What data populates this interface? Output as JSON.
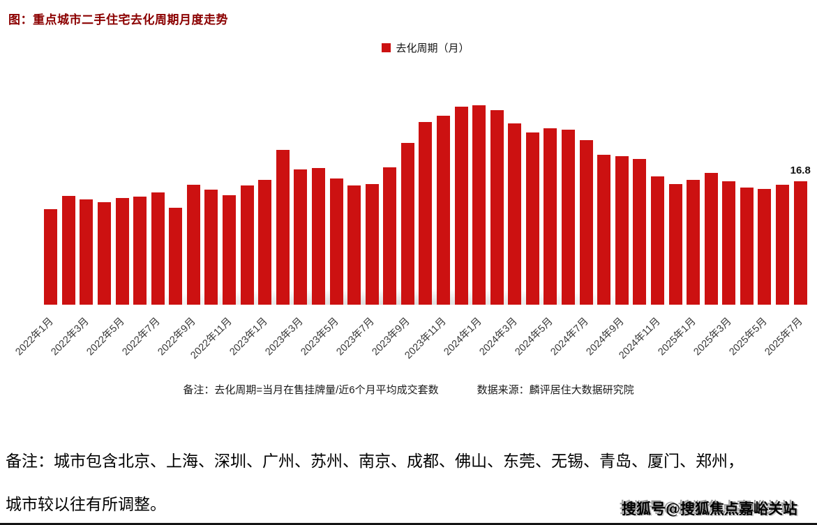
{
  "title": "图：重点城市二手住宅去化周期月度走势",
  "legend": {
    "label": "去化周期（月）",
    "color": "#CC1111"
  },
  "chart_data": {
    "type": "bar",
    "title": "重点城市二手住宅去化周期月度走势",
    "xlabel": "",
    "ylabel": "去化周期（月）",
    "ylim": [
      0,
      30
    ],
    "grid": false,
    "legend_position": "top-center",
    "bar_color": "#CC1111",
    "categories": [
      "2022年1月",
      "2022年2月",
      "2022年3月",
      "2022年4月",
      "2022年5月",
      "2022年6月",
      "2022年7月",
      "2022年8月",
      "2022年9月",
      "2022年10月",
      "2022年11月",
      "2022年12月",
      "2023年1月",
      "2023年2月",
      "2023年3月",
      "2023年4月",
      "2023年5月",
      "2023年6月",
      "2023年7月",
      "2023年8月",
      "2023年9月",
      "2023年10月",
      "2023年11月",
      "2023年12月",
      "2024年1月",
      "2024年2月",
      "2024年3月",
      "2024年4月",
      "2024年5月",
      "2024年6月",
      "2024年7月",
      "2024年8月",
      "2024年9月",
      "2024年10月",
      "2024年11月",
      "2024年12月",
      "2025年1月",
      "2025年2月",
      "2025年3月",
      "2025年4月",
      "2025年5月",
      "2025年6月",
      "2025年7月"
    ],
    "values": [
      13.0,
      14.8,
      14.3,
      13.9,
      14.5,
      14.7,
      15.3,
      13.2,
      16.3,
      15.6,
      14.9,
      16.2,
      17.0,
      21.0,
      18.4,
      18.6,
      17.2,
      16.2,
      16.4,
      18.7,
      22.0,
      24.8,
      25.7,
      26.9,
      27.1,
      26.4,
      24.6,
      23.4,
      24.0,
      23.8,
      22.4,
      20.4,
      20.2,
      19.8,
      17.4,
      16.4,
      17.0,
      17.9,
      16.8,
      15.9,
      15.7,
      16.3,
      16.8
    ],
    "tick_labels": [
      "2022年1月",
      "2022年3月",
      "2022年5月",
      "2022年7月",
      "2022年9月",
      "2022年11月",
      "2023年1月",
      "2023年3月",
      "2023年5月",
      "2023年7月",
      "2023年9月",
      "2023年11月",
      "2024年1月",
      "2024年3月",
      "2024年5月",
      "2024年7月",
      "2024年9月",
      "2024年11月",
      "2025年1月",
      "2025年3月",
      "2025年5月",
      "2025年7月"
    ],
    "annotation": {
      "index": 42,
      "label": "16.8"
    }
  },
  "footnote": {
    "note": "备注：去化周期=当月在售挂牌量/近6个月平均成交套数",
    "source": "数据来源：麟评居住大数据研究院"
  },
  "bottom_note": {
    "line1": "备注：城市包含北京、上海、深圳、广州、苏州、南京、成都、佛山、东莞、无锡、青岛、厦门、郑州，",
    "line2": "城市较以往有所调整。"
  },
  "watermark": "搜狐号@搜狐焦点嘉峪关站"
}
